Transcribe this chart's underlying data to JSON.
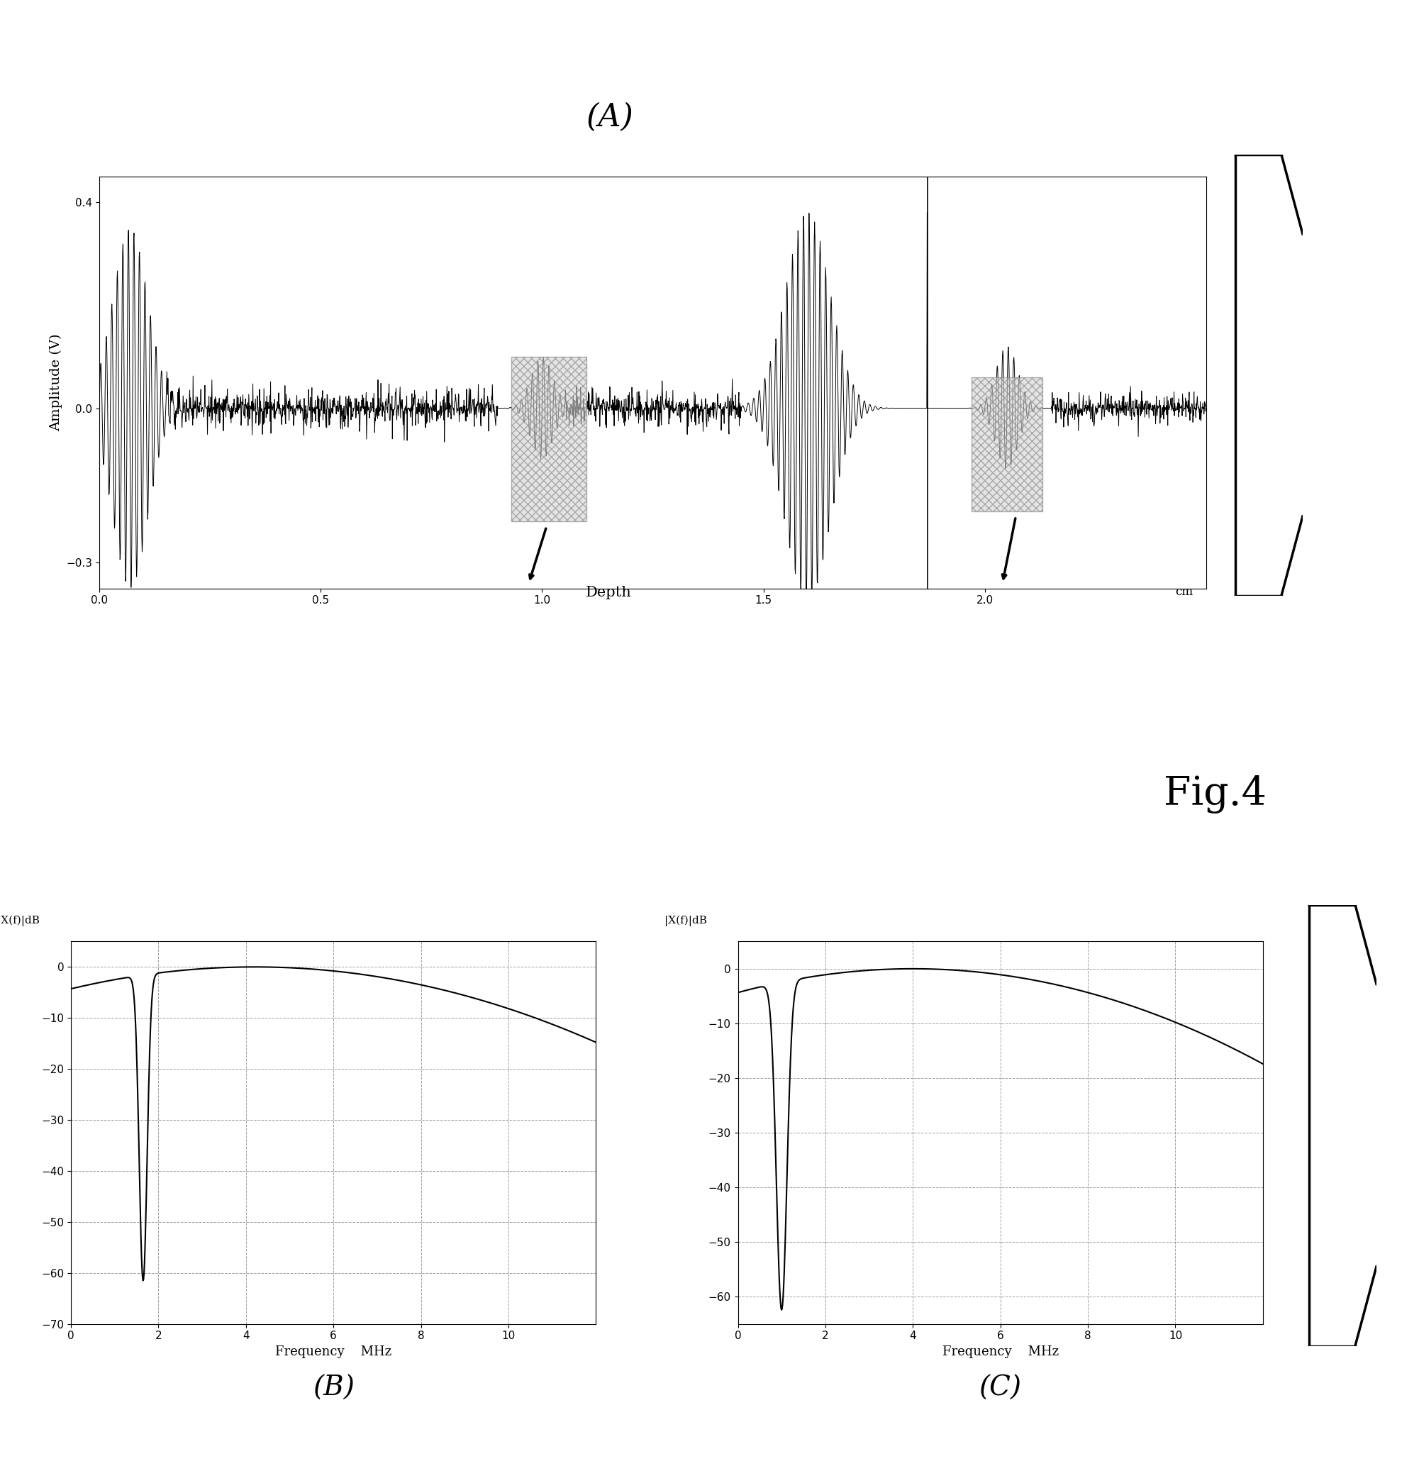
{
  "title_A": "(A)",
  "title_B": "(B)",
  "title_C": "(C)",
  "fig4_label": "Fig.4",
  "panel_A": {
    "xlabel": "Depth",
    "xlabel_unit": "cm",
    "ylabel": "Amplitude (V)",
    "ylim": [
      -0.35,
      0.45
    ],
    "xlim": [
      0,
      2.5
    ],
    "yticks": [
      -0.3,
      0,
      0.4
    ],
    "xticks": [
      0,
      0.5,
      1.0,
      1.5,
      2.0
    ],
    "vertical_line_x": 1.87
  },
  "panel_B": {
    "ylabel_label": "|X(f)|dB",
    "xlabel": "Frequency",
    "xlabel_unit": "MHz",
    "ylim": [
      -70,
      5
    ],
    "xlim": [
      0,
      12
    ],
    "yticks": [
      0,
      -10,
      -20,
      -30,
      -40,
      -50,
      -60,
      -70
    ],
    "xticks": [
      0,
      2,
      4,
      6,
      8,
      10
    ]
  },
  "panel_C": {
    "ylabel_label": "|X(f)|dB",
    "xlabel": "Frequency",
    "xlabel_unit": "MHz",
    "ylim": [
      -65,
      5
    ],
    "xlim": [
      0,
      12
    ],
    "yticks": [
      0,
      -10,
      -20,
      -30,
      -40,
      -50,
      -60
    ],
    "xticks": [
      0,
      2,
      4,
      6,
      8,
      10
    ]
  },
  "background_color": "#ffffff",
  "line_color": "#000000",
  "grid_color": "#888888"
}
